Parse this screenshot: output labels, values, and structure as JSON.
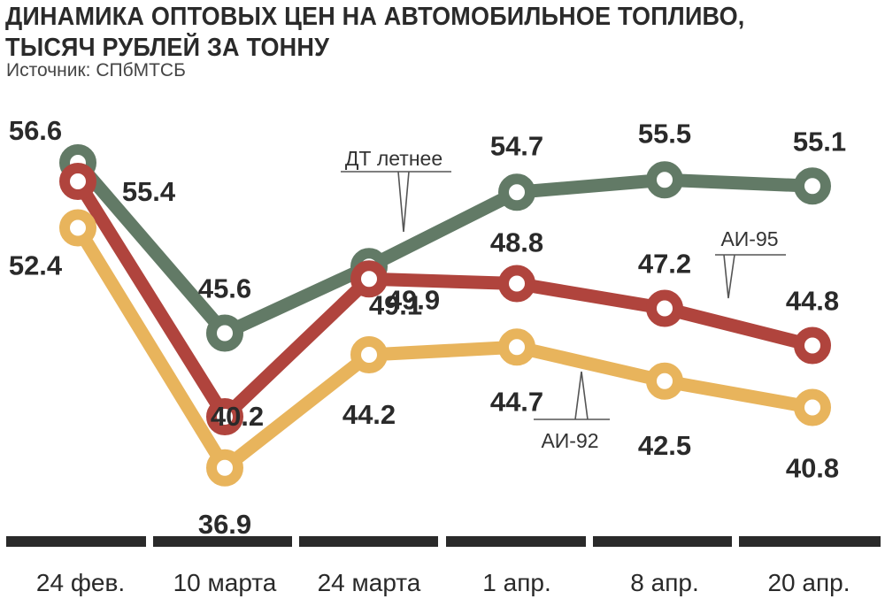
{
  "title_line1": "ДИНАМИКА ОПТОВЫХ ЦЕН НА АВТОМОБИЛЬНОЕ ТОПЛИВО,",
  "title_line2": "ТЫСЯЧ РУБЛЕЙ ЗА ТОННУ",
  "source": "Источник: СПбМТСБ",
  "chart_data": {
    "type": "line",
    "categories": [
      "24 фев.",
      "10 марта",
      "24 марта",
      "1 апр.",
      "8 апр.",
      "20 апр."
    ],
    "ylim": [
      35,
      58
    ],
    "grid": false,
    "series": [
      {
        "name": "ДТ летнее",
        "color": "#627a66",
        "values": [
          56.6,
          45.6,
          49.9,
          54.7,
          55.5,
          55.1
        ]
      },
      {
        "name": "АИ-95",
        "color": "#b0443d",
        "values": [
          55.4,
          40.2,
          49.1,
          48.8,
          47.2,
          44.8
        ]
      },
      {
        "name": "АИ-92",
        "color": "#e8b45c",
        "values": [
          52.4,
          36.9,
          44.2,
          44.7,
          42.5,
          40.8
        ]
      }
    ]
  }
}
